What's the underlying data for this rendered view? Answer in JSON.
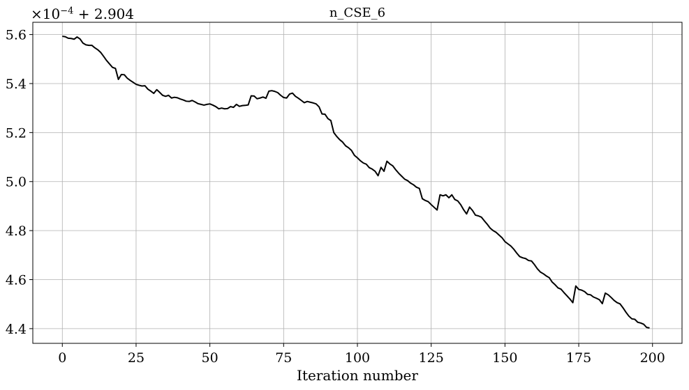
{
  "chart_data": {
    "type": "line",
    "title": "n_CSE_6",
    "xlabel": "Iteration number",
    "ylabel": "",
    "y_offset_text": {
      "mult": "×10",
      "exp": "−4",
      "add": " + 2.904"
    },
    "xlim": [
      -10,
      210
    ],
    "ylim": [
      4.34,
      5.65
    ],
    "xticks": [
      0,
      25,
      50,
      75,
      100,
      125,
      150,
      175,
      200
    ],
    "yticks": [
      4.4,
      4.6,
      4.8,
      5.0,
      5.2,
      5.4,
      5.6
    ],
    "ytick_labels": [
      "4.4",
      "4.6",
      "4.8",
      "5.0",
      "5.2",
      "5.4",
      "5.6"
    ],
    "grid": true,
    "line_color": "#000000",
    "series": [
      {
        "values": [
          5.593,
          5.591,
          5.585,
          5.584,
          5.581,
          5.59,
          5.582,
          5.565,
          5.558,
          5.556,
          5.556,
          5.546,
          5.538,
          5.527,
          5.511,
          5.494,
          5.48,
          5.466,
          5.462,
          5.417,
          5.437,
          5.436,
          5.422,
          5.413,
          5.405,
          5.397,
          5.393,
          5.39,
          5.391,
          5.377,
          5.369,
          5.36,
          5.375,
          5.364,
          5.352,
          5.348,
          5.352,
          5.341,
          5.344,
          5.342,
          5.337,
          5.333,
          5.328,
          5.327,
          5.331,
          5.325,
          5.318,
          5.315,
          5.312,
          5.315,
          5.317,
          5.312,
          5.306,
          5.297,
          5.3,
          5.297,
          5.298,
          5.306,
          5.303,
          5.315,
          5.307,
          5.31,
          5.311,
          5.313,
          5.35,
          5.349,
          5.338,
          5.341,
          5.345,
          5.34,
          5.369,
          5.371,
          5.368,
          5.363,
          5.352,
          5.343,
          5.341,
          5.357,
          5.361,
          5.348,
          5.34,
          5.331,
          5.322,
          5.327,
          5.324,
          5.321,
          5.317,
          5.305,
          5.276,
          5.275,
          5.257,
          5.249,
          5.2,
          5.184,
          5.171,
          5.161,
          5.146,
          5.138,
          5.127,
          5.107,
          5.097,
          5.085,
          5.076,
          5.071,
          5.057,
          5.051,
          5.042,
          5.024,
          5.058,
          5.042,
          5.083,
          5.072,
          5.064,
          5.048,
          5.034,
          5.022,
          5.01,
          5.004,
          4.994,
          4.987,
          4.977,
          4.972,
          4.93,
          4.923,
          4.918,
          4.906,
          4.895,
          4.884,
          4.946,
          4.942,
          4.946,
          4.934,
          4.946,
          4.927,
          4.921,
          4.906,
          4.885,
          4.868,
          4.896,
          4.882,
          4.863,
          4.86,
          4.855,
          4.84,
          4.826,
          4.81,
          4.8,
          4.793,
          4.782,
          4.771,
          4.755,
          4.746,
          4.737,
          4.724,
          4.708,
          4.694,
          4.689,
          4.686,
          4.678,
          4.676,
          4.661,
          4.644,
          4.631,
          4.624,
          4.615,
          4.608,
          4.59,
          4.579,
          4.566,
          4.561,
          4.547,
          4.534,
          4.521,
          4.506,
          4.574,
          4.56,
          4.557,
          4.551,
          4.54,
          4.538,
          4.529,
          4.524,
          4.518,
          4.502,
          4.545,
          4.538,
          4.527,
          4.515,
          4.506,
          4.501,
          4.485,
          4.467,
          4.451,
          4.44,
          4.438,
          4.426,
          4.423,
          4.418,
          4.405,
          4.403
        ]
      }
    ]
  }
}
